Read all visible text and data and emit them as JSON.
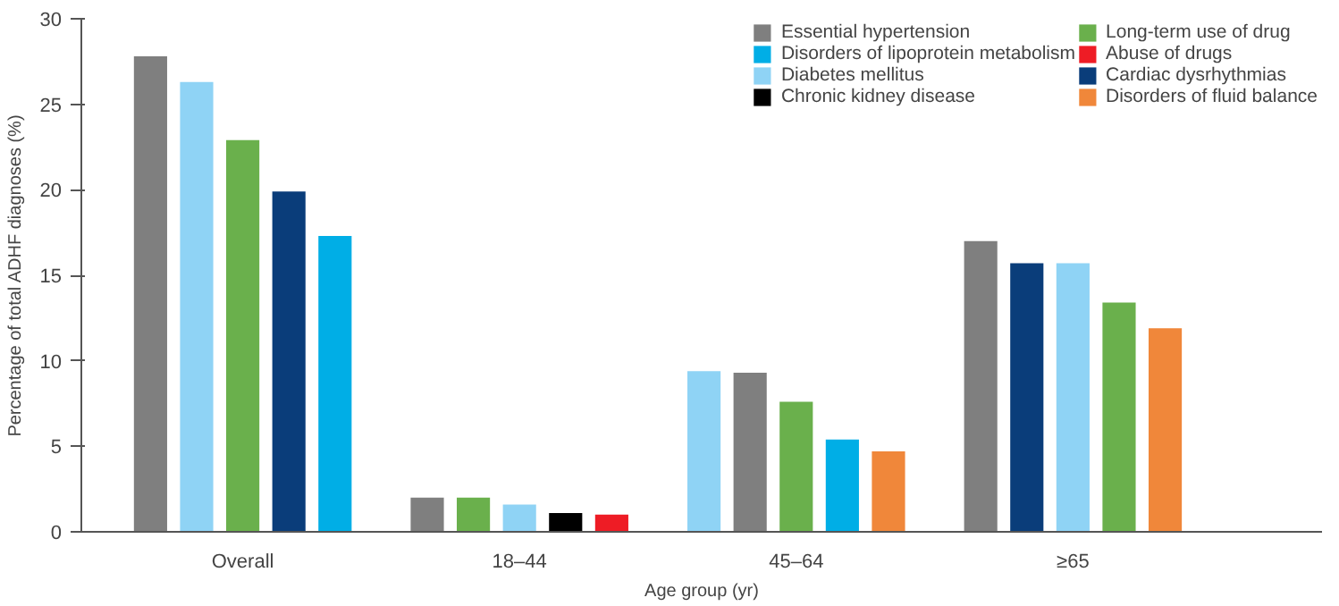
{
  "chart_data": {
    "type": "bar",
    "xlabel": "Age group (yr)",
    "ylabel": "Percentage of total ADHF diagnoses (%)",
    "categories": [
      null,
      null,
      "Overall",
      null,
      null,
      null,
      null,
      null,
      "18–44",
      null,
      null,
      null,
      null,
      null,
      "45–64",
      null,
      null,
      null,
      null,
      null,
      "≥65",
      null,
      null
    ],
    "series": [
      {
        "name": "Essential hypertension",
        "color": "#7f7f7f",
        "values": [
          27.8,
          null,
          null,
          null,
          null,
          null,
          2.0,
          null,
          null,
          null,
          null,
          null,
          null,
          9.3,
          null,
          null,
          null,
          null,
          17.0,
          null,
          null,
          null,
          null
        ]
      },
      {
        "name": "Diabetes mellitus",
        "color": "#8fd3f5",
        "values": [
          null,
          26.3,
          null,
          null,
          null,
          null,
          null,
          null,
          1.6,
          null,
          null,
          null,
          9.4,
          null,
          null,
          null,
          null,
          null,
          null,
          null,
          15.7,
          null,
          null
        ]
      },
      {
        "name": "Long-term use of drug",
        "color": "#6ab04c",
        "values": [
          null,
          null,
          22.9,
          null,
          null,
          null,
          null,
          2.0,
          null,
          null,
          null,
          null,
          null,
          null,
          7.6,
          null,
          null,
          null,
          null,
          null,
          null,
          13.4,
          null
        ]
      },
      {
        "name": "Cardiac dysrhythmias",
        "color": "#0a3d7a",
        "values": [
          null,
          null,
          null,
          19.9,
          null,
          null,
          null,
          null,
          null,
          null,
          null,
          null,
          null,
          null,
          null,
          null,
          null,
          null,
          null,
          15.7,
          null,
          null,
          null
        ]
      },
      {
        "name": "Disorders of lipoprotein metabolism",
        "color": "#00aee6",
        "values": [
          null,
          null,
          null,
          null,
          17.3,
          null,
          null,
          null,
          null,
          null,
          null,
          null,
          null,
          null,
          null,
          5.4,
          null,
          null,
          null,
          null,
          null,
          null,
          null
        ]
      },
      {
        "name": "Chronic kidney disease",
        "color": "#000000",
        "values": [
          null,
          null,
          null,
          null,
          null,
          null,
          null,
          null,
          null,
          1.1,
          null,
          null,
          null,
          null,
          null,
          null,
          null,
          null,
          null,
          null,
          null,
          null,
          null
        ]
      },
      {
        "name": "Abuse of drugs",
        "color": "#ee1c25",
        "values": [
          null,
          null,
          null,
          null,
          null,
          null,
          null,
          null,
          null,
          null,
          1.0,
          null,
          null,
          null,
          null,
          null,
          null,
          null,
          null,
          null,
          null,
          null,
          null
        ]
      },
      {
        "name": "Disorders of fluid balance",
        "color": "#f0873a",
        "values": [
          null,
          null,
          null,
          null,
          null,
          null,
          null,
          null,
          null,
          null,
          null,
          null,
          null,
          null,
          null,
          null,
          4.7,
          null,
          null,
          null,
          null,
          null,
          11.9
        ]
      }
    ],
    "ylim": [
      0,
      30
    ],
    "yticks": [
      0,
      5,
      10,
      15,
      20,
      25,
      30
    ],
    "grid": false,
    "legend": "top right"
  }
}
